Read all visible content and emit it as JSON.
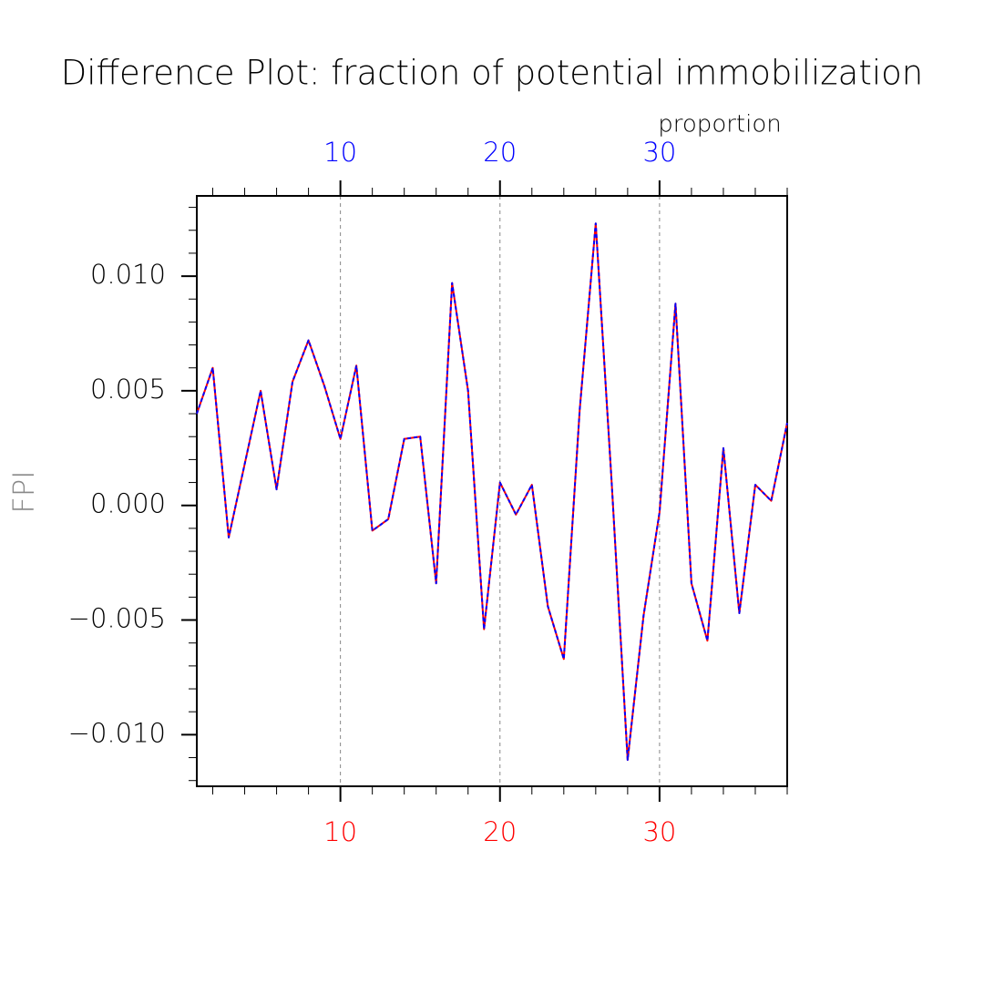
{
  "chart_data": {
    "type": "line",
    "title": "Difference Plot: fraction of potential immobilization",
    "ylabel": "FPI",
    "x2label": "proportion",
    "x": [
      1,
      2,
      3,
      4,
      5,
      6,
      7,
      8,
      9,
      10,
      11,
      12,
      13,
      14,
      15,
      16,
      17,
      18,
      19,
      20,
      21,
      22,
      23,
      24,
      25,
      26,
      27,
      28,
      29,
      30,
      31,
      32,
      33,
      34,
      35,
      36,
      37,
      38
    ],
    "series": [
      {
        "color": "#ff0000",
        "dash": false,
        "values": [
          0.004,
          0.006,
          -0.0014,
          0.0018,
          0.005,
          0.0007,
          0.0054,
          0.0072,
          0.0052,
          0.0029,
          0.0061,
          -0.0011,
          -0.0006,
          0.0029,
          0.003,
          -0.0034,
          0.0097,
          0.005,
          -0.0054,
          0.001,
          -0.0004,
          0.0009,
          -0.0044,
          -0.0067,
          0.0042,
          0.0123,
          0.001,
          -0.0111,
          -0.0048,
          -0.0003,
          0.0088,
          -0.0034,
          -0.0059,
          0.0025,
          -0.0047,
          0.0009,
          0.0002,
          0.0036
        ]
      },
      {
        "color": "#0000ff",
        "dash": true,
        "values": [
          0.004,
          0.006,
          -0.0014,
          0.0018,
          0.005,
          0.0007,
          0.0054,
          0.0072,
          0.0052,
          0.0029,
          0.0061,
          -0.0011,
          -0.0006,
          0.0029,
          0.003,
          -0.0034,
          0.0097,
          0.005,
          -0.0054,
          0.001,
          -0.0004,
          0.0009,
          -0.0044,
          -0.0067,
          0.0042,
          0.0123,
          0.001,
          -0.0111,
          -0.0048,
          -0.0003,
          0.0088,
          -0.0034,
          -0.0059,
          0.0025,
          -0.0047,
          0.0009,
          0.0002,
          0.0036
        ]
      }
    ],
    "xlim": [
      1,
      38
    ],
    "xticks": [
      10,
      20,
      30
    ],
    "xtick_color": "#ff0000",
    "x2ticks": [
      10,
      20,
      30
    ],
    "x2tick_color": "#0000ff",
    "xminorticks": [
      2,
      4,
      6,
      8,
      12,
      14,
      16,
      18,
      22,
      24,
      26,
      28,
      32,
      34,
      36,
      38
    ],
    "xgrid": true,
    "ylim": [
      -0.01225,
      0.0135
    ],
    "yticks": [
      {
        "value": -0.01,
        "label": "−0.010"
      },
      {
        "value": -0.005,
        "label": "−0.005"
      },
      {
        "value": 0,
        "label": "0.000"
      },
      {
        "value": 0.005,
        "label": "0.005"
      },
      {
        "value": 0.01,
        "label": "0.010"
      }
    ],
    "yminorticks": [
      -0.012,
      -0.011,
      -0.009,
      -0.008,
      -0.007,
      -0.006,
      -0.004,
      -0.003,
      -0.002,
      -0.001,
      0.001,
      0.002,
      0.003,
      0.004,
      0.006,
      0.007,
      0.008,
      0.009,
      0.011,
      0.012,
      0.013
    ]
  }
}
